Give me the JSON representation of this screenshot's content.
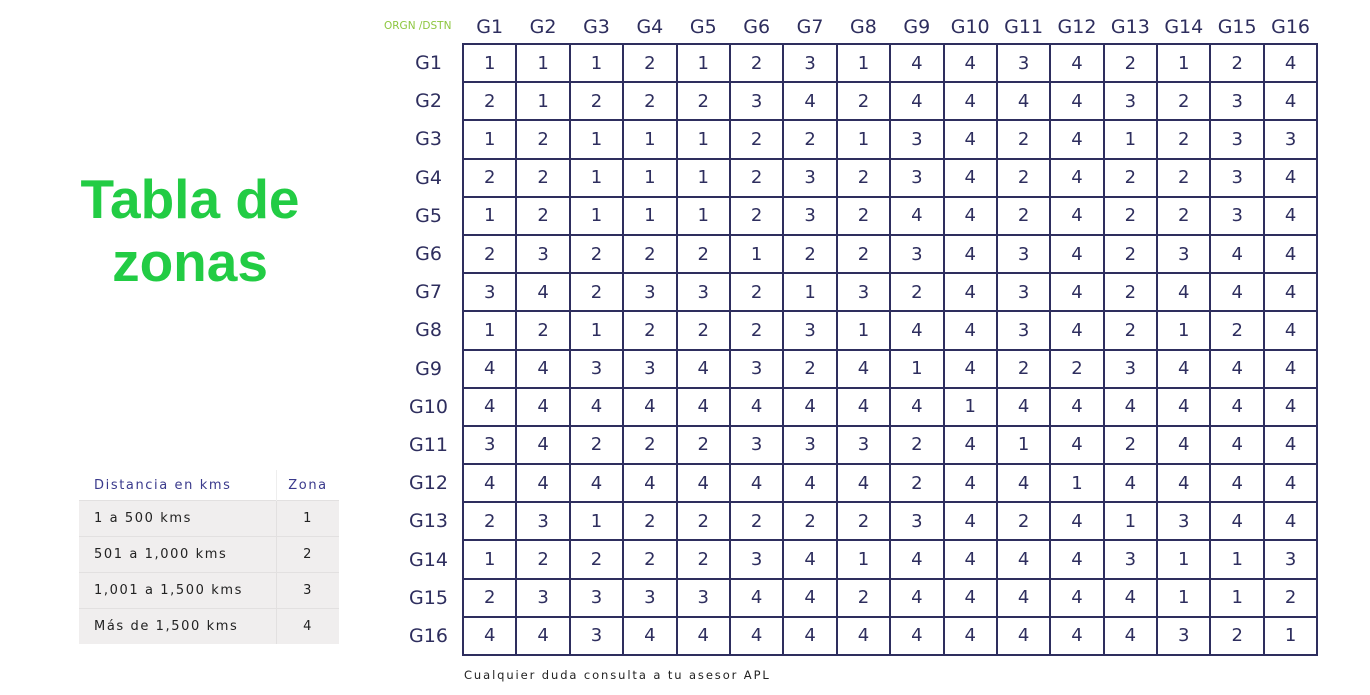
{
  "title": "Tabla de zonas",
  "colors": {
    "title": "#22cc44",
    "corner_label": "#8dc63f",
    "table": "#2e2e5e"
  },
  "matrix": {
    "corner_label": "ORGN /DSTN",
    "columns": [
      "G1",
      "G2",
      "G3",
      "G4",
      "G5",
      "G6",
      "G7",
      "G8",
      "G9",
      "G10",
      "G11",
      "G12",
      "G13",
      "G14",
      "G15",
      "G16"
    ],
    "rows": [
      {
        "label": "G1",
        "values": [
          1,
          1,
          1,
          2,
          1,
          2,
          3,
          1,
          4,
          4,
          3,
          4,
          2,
          1,
          2,
          4
        ]
      },
      {
        "label": "G2",
        "values": [
          2,
          1,
          2,
          2,
          2,
          3,
          4,
          2,
          4,
          4,
          4,
          4,
          3,
          2,
          3,
          4
        ]
      },
      {
        "label": "G3",
        "values": [
          1,
          2,
          1,
          1,
          1,
          2,
          2,
          1,
          3,
          4,
          2,
          4,
          1,
          2,
          3,
          3
        ]
      },
      {
        "label": "G4",
        "values": [
          2,
          2,
          1,
          1,
          1,
          2,
          3,
          2,
          3,
          4,
          2,
          4,
          2,
          2,
          3,
          4
        ]
      },
      {
        "label": "G5",
        "values": [
          1,
          2,
          1,
          1,
          1,
          2,
          3,
          2,
          4,
          4,
          2,
          4,
          2,
          2,
          3,
          4
        ]
      },
      {
        "label": "G6",
        "values": [
          2,
          3,
          2,
          2,
          2,
          1,
          2,
          2,
          3,
          4,
          3,
          4,
          2,
          3,
          4,
          4
        ]
      },
      {
        "label": "G7",
        "values": [
          3,
          4,
          2,
          3,
          3,
          2,
          1,
          3,
          2,
          4,
          3,
          4,
          2,
          4,
          4,
          4
        ]
      },
      {
        "label": "G8",
        "values": [
          1,
          2,
          1,
          2,
          2,
          2,
          3,
          1,
          4,
          4,
          3,
          4,
          2,
          1,
          2,
          4
        ]
      },
      {
        "label": "G9",
        "values": [
          4,
          4,
          3,
          3,
          4,
          3,
          2,
          4,
          1,
          4,
          2,
          2,
          3,
          4,
          4,
          4
        ]
      },
      {
        "label": "G10",
        "values": [
          4,
          4,
          4,
          4,
          4,
          4,
          4,
          4,
          4,
          1,
          4,
          4,
          4,
          4,
          4,
          4
        ]
      },
      {
        "label": "G11",
        "values": [
          3,
          4,
          2,
          2,
          2,
          3,
          3,
          3,
          2,
          4,
          1,
          4,
          2,
          4,
          4,
          4
        ]
      },
      {
        "label": "G12",
        "values": [
          4,
          4,
          4,
          4,
          4,
          4,
          4,
          4,
          2,
          4,
          4,
          1,
          4,
          4,
          4,
          4
        ]
      },
      {
        "label": "G13",
        "values": [
          2,
          3,
          1,
          2,
          2,
          2,
          2,
          2,
          3,
          4,
          2,
          4,
          1,
          3,
          4,
          4
        ]
      },
      {
        "label": "G14",
        "values": [
          1,
          2,
          2,
          2,
          2,
          3,
          4,
          1,
          4,
          4,
          4,
          4,
          3,
          1,
          1,
          3
        ]
      },
      {
        "label": "G15",
        "values": [
          2,
          3,
          3,
          3,
          3,
          4,
          4,
          2,
          4,
          4,
          4,
          4,
          4,
          1,
          1,
          2
        ]
      },
      {
        "label": "G16",
        "values": [
          4,
          4,
          3,
          4,
          4,
          4,
          4,
          4,
          4,
          4,
          4,
          4,
          4,
          3,
          2,
          1
        ]
      }
    ]
  },
  "legend": {
    "headers": [
      "Distancia en kms",
      "Zona"
    ],
    "rows": [
      {
        "distance": "1 a 500 kms",
        "zone": "1"
      },
      {
        "distance": "501 a 1,000 kms",
        "zone": "2"
      },
      {
        "distance": "1,001 a 1,500 kms",
        "zone": "3"
      },
      {
        "distance": "Más de 1,500 kms",
        "zone": "4"
      }
    ]
  },
  "note": "Cualquier duda consulta a tu asesor APL"
}
